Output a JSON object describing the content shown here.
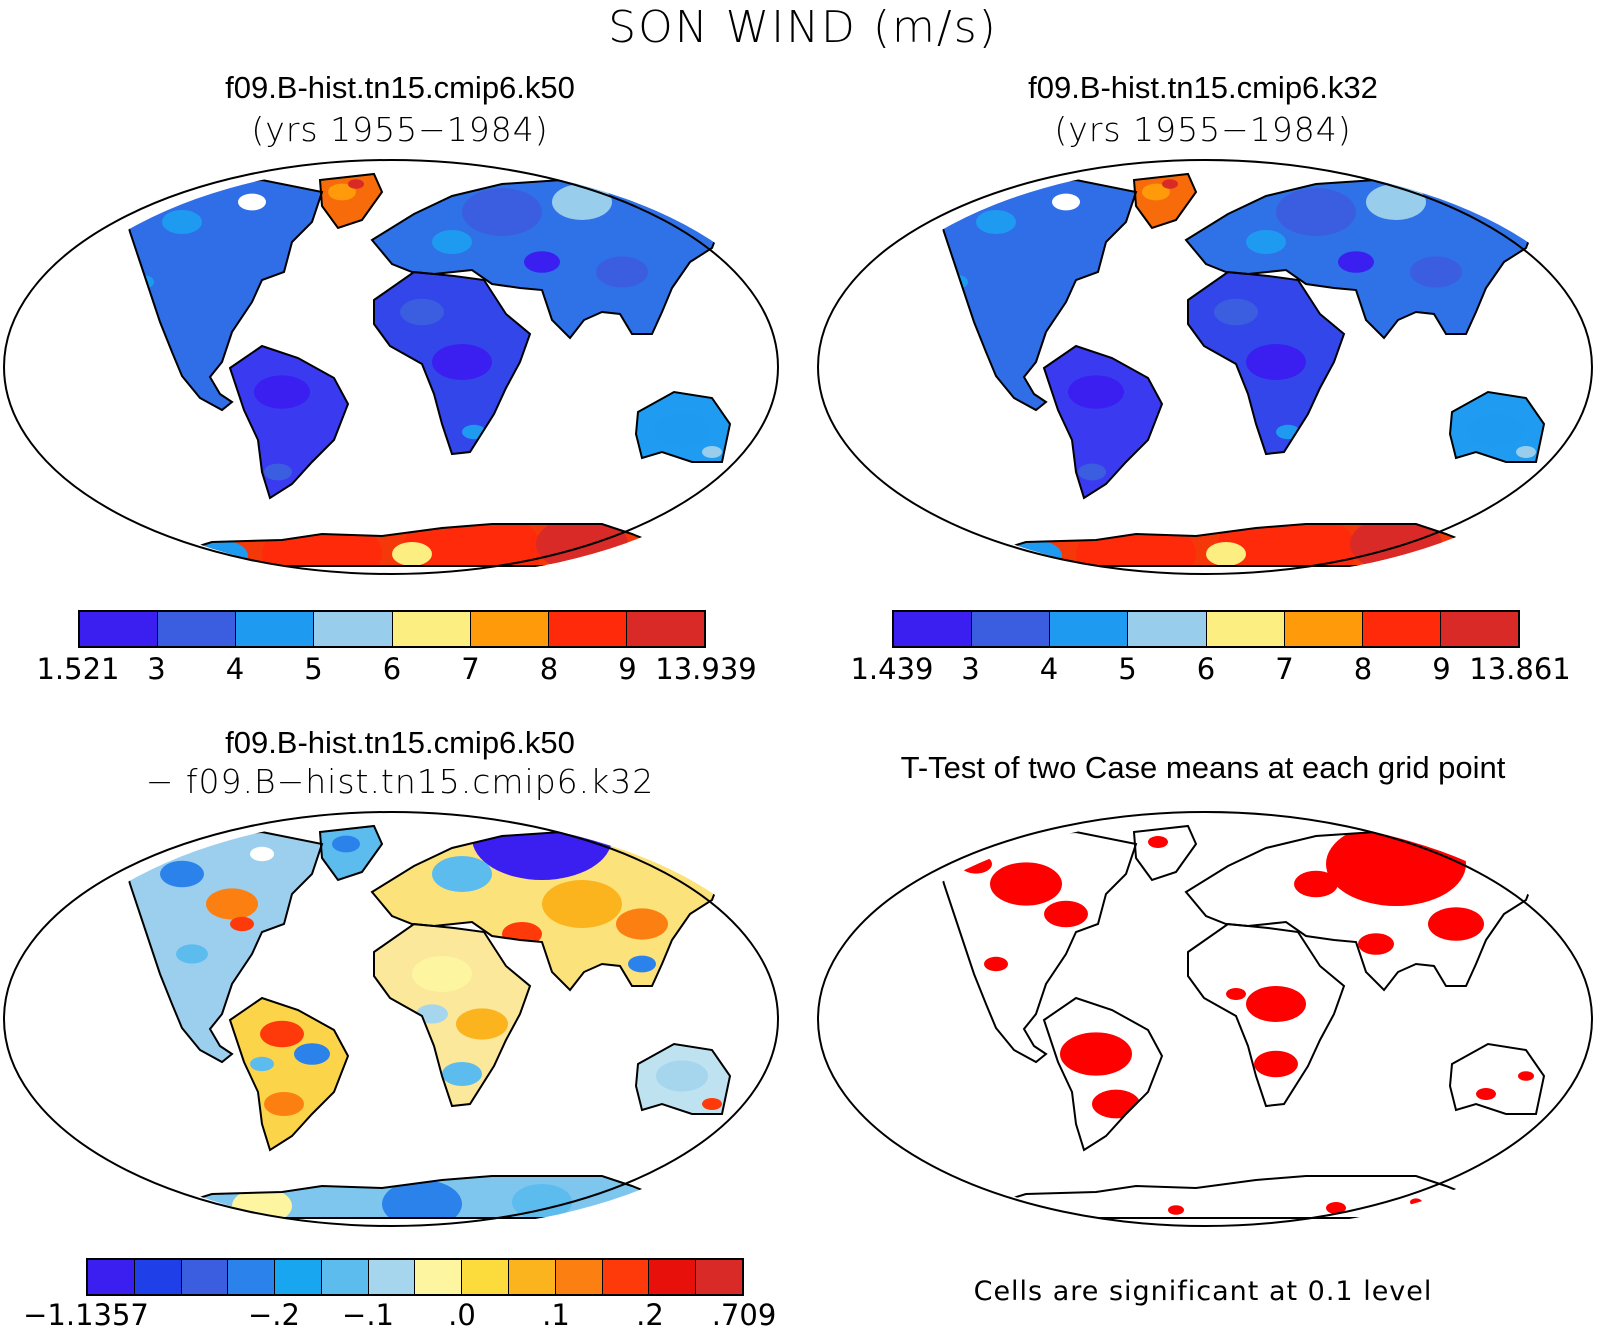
{
  "figure": {
    "title": "SON WIND (m/s)"
  },
  "panels": {
    "top_left": {
      "title": "f09.B-hist.tn15.cmip6.k50",
      "subtitle": "(yrs 1955−1984)",
      "colorbar": {
        "colors": [
          "#3a1ff0",
          "#3b5ee0",
          "#1e9bf0",
          "#98cdec",
          "#fcee80",
          "#ff9a0a",
          "#ff2a0a",
          "#d92a28"
        ],
        "labels": [
          "1.521",
          "3",
          "4",
          "5",
          "6",
          "7",
          "8",
          "9",
          "13.939"
        ]
      }
    },
    "top_right": {
      "title": "f09.B-hist.tn15.cmip6.k32",
      "subtitle": "(yrs 1955−1984)",
      "colorbar": {
        "colors": [
          "#3a1ff0",
          "#3b5ee0",
          "#1e9bf0",
          "#98cdec",
          "#fcee80",
          "#ff9a0a",
          "#ff2a0a",
          "#d92a28"
        ],
        "labels": [
          "1.439",
          "3",
          "4",
          "5",
          "6",
          "7",
          "8",
          "9",
          "13.861"
        ]
      }
    },
    "bottom_left": {
      "title": "f09.B-hist.tn15.cmip6.k50",
      "subtitle": "− f09.B−hist.tn15.cmip6.k32",
      "colorbar": {
        "colors": [
          "#3a1ff0",
          "#1f3fe8",
          "#3b5ee0",
          "#2a82ea",
          "#18a6f0",
          "#5cbcee",
          "#a6d6ee",
          "#fdf5a0",
          "#fcdc3c",
          "#fcb41e",
          "#fc7f12",
          "#ff3a0a",
          "#e8100a",
          "#d92a28"
        ],
        "labels": [
          "−1.1357",
          "−.2",
          "−.1",
          ".0",
          ".1",
          ".2",
          ".709"
        ]
      }
    },
    "bottom_right": {
      "title": "T-Test of two Case means at each grid point",
      "note": "Cells are significant at 0.1 level",
      "significant_color": "#ff0000"
    }
  },
  "map": {
    "projection": "Robinson",
    "continents": [
      "north-america",
      "greenland",
      "south-america",
      "europe-asia",
      "africa",
      "australia",
      "antarctica"
    ]
  }
}
